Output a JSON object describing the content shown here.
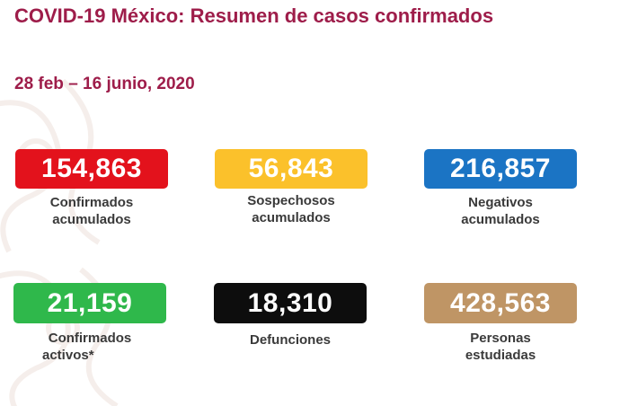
{
  "title": "COVID-19 México: Resumen de casos confirmados",
  "date_range": "28 feb – 16 junio, 2020",
  "colors": {
    "title": "#9e1d4a",
    "confirmados": "#e3121c",
    "sospechosos": "#fbc12b",
    "negativos": "#1b74c4",
    "activos": "#2fb84b",
    "defunciones": "#0d0d0d",
    "estudiadas": "#bf9565"
  },
  "stats": {
    "confirmados": {
      "value": "154,863",
      "label_line1": "Confirmados",
      "label_line2": "acumulados"
    },
    "sospechosos": {
      "value": "56,843",
      "label_line1": "Sospechosos",
      "label_line2": "acumulados"
    },
    "negativos": {
      "value": "216,857",
      "label_line1": "Negativos",
      "label_line2": "acumulados"
    },
    "activos": {
      "value": "21,159",
      "label_line1": "Confirmados",
      "label_line2": "activos*"
    },
    "defunciones": {
      "value": "18,310",
      "label_line1": "Defunciones"
    },
    "estudiadas": {
      "value": "428,563",
      "label_line1": "Personas",
      "label_line2": "estudiadas"
    }
  }
}
